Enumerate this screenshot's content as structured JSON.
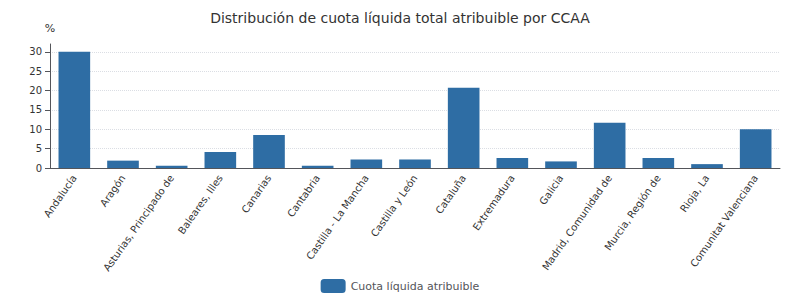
{
  "chart_data": {
    "type": "bar",
    "title": "Distribución de cuota líquida total atribuible por CCAA",
    "categories": [
      "Andalucía",
      "Aragón",
      "Asturias, Principado de",
      "Baleares, Illes",
      "Canarias",
      "Cantabria",
      "Castilla - La Mancha",
      "Castilla y León",
      "Cataluña",
      "Extremadura",
      "Galicia",
      "Madrid, Comunidad de",
      "Murcia, Región de",
      "Rioja, La",
      "Comunitat Valenciana"
    ],
    "series": [
      {
        "name": "Cuota líquida atribuible",
        "color": "#2e6da4",
        "values": [
          30.0,
          1.9,
          0.6,
          4.1,
          8.5,
          0.6,
          2.2,
          2.2,
          20.7,
          2.6,
          1.7,
          11.7,
          2.6,
          1.0,
          10.0
        ]
      }
    ],
    "ylabel": "%",
    "ylim": [
      0,
      32
    ],
    "yticks": [
      0,
      5,
      10,
      15,
      20,
      25,
      30
    ],
    "grid": true,
    "legend": "bottom"
  }
}
